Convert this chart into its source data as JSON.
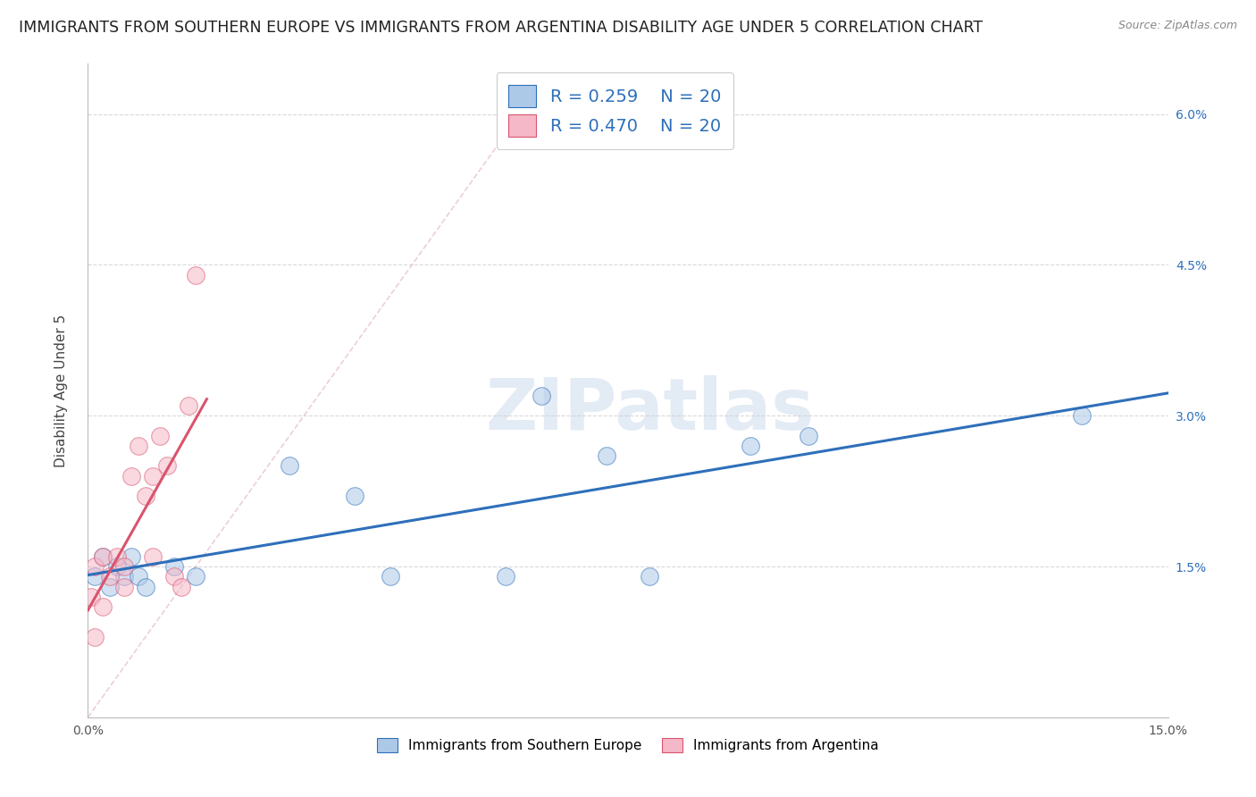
{
  "title": "IMMIGRANTS FROM SOUTHERN EUROPE VS IMMIGRANTS FROM ARGENTINA DISABILITY AGE UNDER 5 CORRELATION CHART",
  "source": "Source: ZipAtlas.com",
  "xlabel_legend1": "Immigrants from Southern Europe",
  "xlabel_legend2": "Immigrants from Argentina",
  "ylabel": "Disability Age Under 5",
  "watermark": "ZIPatlas",
  "r_blue": 0.259,
  "n_blue": 20,
  "r_pink": 0.47,
  "n_pink": 20,
  "xlim": [
    0.0,
    0.15
  ],
  "ylim": [
    0.0,
    0.065
  ],
  "xticks": [
    0.0,
    0.03,
    0.06,
    0.09,
    0.12,
    0.15
  ],
  "yticks": [
    0.0,
    0.015,
    0.03,
    0.045,
    0.06
  ],
  "ytick_right_labels": [
    "",
    "1.5%",
    "3.0%",
    "4.5%",
    "6.0%"
  ],
  "xtick_labels": [
    "0.0%",
    "",
    "",
    "",
    "",
    "15.0%"
  ],
  "blue_scatter_x": [
    0.001,
    0.002,
    0.003,
    0.004,
    0.005,
    0.006,
    0.007,
    0.008,
    0.012,
    0.015,
    0.028,
    0.037,
    0.042,
    0.058,
    0.063,
    0.072,
    0.078,
    0.092,
    0.1,
    0.138
  ],
  "blue_scatter_y": [
    0.014,
    0.016,
    0.013,
    0.015,
    0.014,
    0.016,
    0.014,
    0.013,
    0.015,
    0.014,
    0.025,
    0.022,
    0.014,
    0.014,
    0.032,
    0.026,
    0.014,
    0.027,
    0.028,
    0.03
  ],
  "pink_scatter_x": [
    0.0005,
    0.001,
    0.001,
    0.002,
    0.002,
    0.003,
    0.004,
    0.005,
    0.005,
    0.006,
    0.007,
    0.008,
    0.009,
    0.009,
    0.01,
    0.011,
    0.012,
    0.013,
    0.014,
    0.015
  ],
  "pink_scatter_y": [
    0.012,
    0.008,
    0.015,
    0.011,
    0.016,
    0.014,
    0.016,
    0.013,
    0.015,
    0.024,
    0.027,
    0.022,
    0.016,
    0.024,
    0.028,
    0.025,
    0.014,
    0.013,
    0.031,
    0.044
  ],
  "pink_dashed_line_x": [
    0.0,
    0.065
  ],
  "pink_dashed_line_y": [
    0.0,
    0.065
  ],
  "blue_color": "#adc9e8",
  "pink_color": "#f5b8c8",
  "blue_line_color": "#2e6fba",
  "pink_line_color": "#d9546e",
  "pink_dashed_color": "#e8a0b0",
  "grid_color": "#d0d0d0",
  "background_color": "#ffffff",
  "title_fontsize": 12.5,
  "axis_label_fontsize": 11,
  "tick_fontsize": 10,
  "scatter_size": 200,
  "scatter_alpha": 0.55,
  "scatter_edgewidth": 0.8
}
